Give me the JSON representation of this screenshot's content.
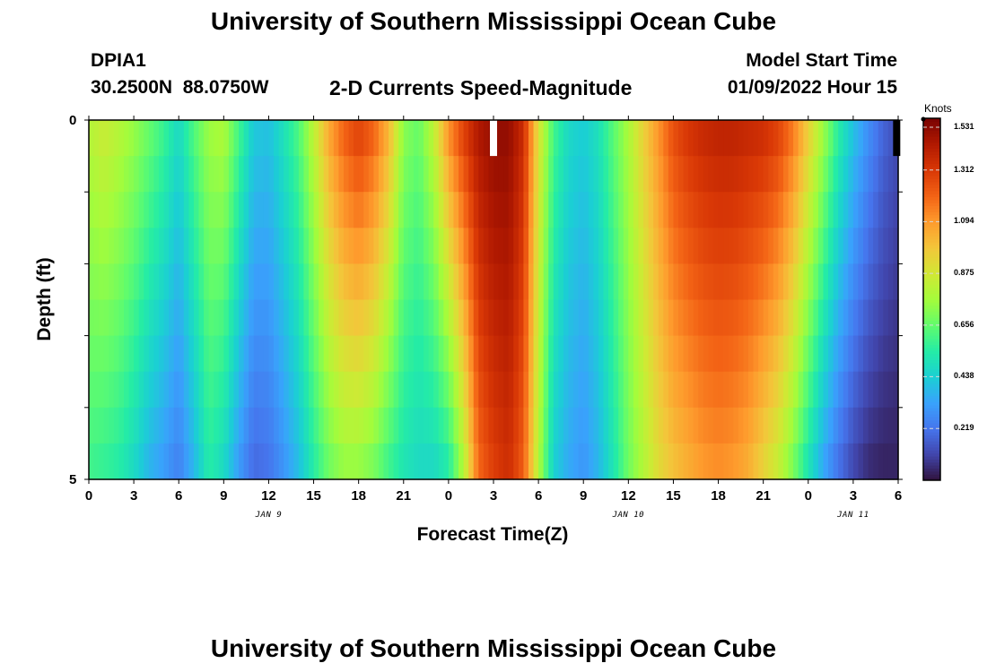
{
  "titles": {
    "top": "University of Southern Mississippi Ocean Cube",
    "bottom": "University of Southern Mississippi Ocean Cube"
  },
  "header": {
    "station": "DPIA1",
    "coords": "30.2500N  88.0750W",
    "subtitle": "2-D Currents Speed-Magnitude",
    "model_label": "Model Start Time",
    "model_time": "01/09/2022 Hour 15"
  },
  "colors": {
    "colormap": [
      "#30123b",
      "#4145ab",
      "#4675ed",
      "#39a2fc",
      "#1bcfd4",
      "#24eca6",
      "#61fc6c",
      "#a4fc3b",
      "#d1e834",
      "#f3c63a",
      "#fe9b2d",
      "#f36315",
      "#d93806",
      "#b11901",
      "#7a0402"
    ],
    "missing": "#ffffff",
    "frame": "#000000"
  },
  "chart_data": {
    "type": "heatmap",
    "title": "2-D Currents Speed-Magnitude",
    "xlabel": "Forecast Time(Z)",
    "ylabel": "Depth (ft)",
    "ylim": [
      0,
      5
    ],
    "xlim_hours": [
      0,
      54
    ],
    "x_tick_labels": [
      "0",
      "3",
      "6",
      "9",
      "12",
      "15",
      "18",
      "21",
      "0",
      "3",
      "6",
      "9",
      "12",
      "15",
      "18",
      "21",
      "0",
      "3",
      "6"
    ],
    "y_tick_labels": [
      "0",
      "5"
    ],
    "date_labels": [
      {
        "label": "JAN 9",
        "hour": 12
      },
      {
        "label": "JAN 10",
        "hour": 36
      },
      {
        "label": "JAN 11",
        "hour": 51
      }
    ],
    "depth_layers_ft": [
      0.25,
      0.75,
      1.25,
      1.75,
      2.25,
      2.75,
      3.25,
      3.75,
      4.25,
      4.75
    ],
    "time_knots_hours": [
      0,
      1,
      2,
      3,
      4,
      5,
      6,
      7,
      8,
      9,
      10,
      11,
      12,
      13,
      14,
      15,
      16,
      17,
      18,
      19,
      20,
      21,
      22,
      23,
      24,
      25,
      26,
      27,
      28,
      29,
      30,
      31,
      32,
      33,
      34,
      35,
      36,
      37,
      38,
      39,
      40,
      41,
      42,
      43,
      44,
      45,
      46,
      47,
      48,
      49,
      50,
      51,
      52,
      53,
      54
    ],
    "speed_profiles_knots": {
      "surface": [
        0.8,
        0.85,
        0.8,
        0.74,
        0.66,
        0.58,
        0.47,
        0.62,
        0.75,
        0.78,
        0.6,
        0.42,
        0.4,
        0.5,
        0.62,
        0.82,
        1.05,
        1.2,
        1.28,
        1.2,
        1.02,
        0.72,
        0.66,
        0.82,
        1.1,
        1.28,
        1.42,
        1.48,
        1.48,
        1.35,
        0.9,
        0.6,
        0.47,
        0.43,
        0.5,
        0.64,
        0.78,
        0.95,
        1.1,
        1.25,
        1.32,
        1.36,
        1.38,
        1.38,
        1.36,
        1.34,
        1.28,
        1.15,
        0.95,
        0.75,
        0.55,
        0.4,
        0.28,
        0.18,
        0.12
      ],
      "bottom": [
        0.6,
        0.58,
        0.55,
        0.48,
        0.38,
        0.32,
        0.25,
        0.38,
        0.55,
        0.48,
        0.32,
        0.2,
        0.22,
        0.3,
        0.4,
        0.55,
        0.68,
        0.75,
        0.75,
        0.7,
        0.6,
        0.52,
        0.48,
        0.48,
        0.55,
        0.8,
        1.2,
        1.3,
        1.35,
        1.22,
        0.8,
        0.45,
        0.35,
        0.3,
        0.38,
        0.52,
        0.68,
        0.8,
        0.92,
        1.0,
        1.05,
        1.1,
        1.12,
        1.1,
        1.05,
        0.95,
        0.85,
        0.7,
        0.52,
        0.35,
        0.22,
        0.12,
        0.06,
        0.04,
        0.04
      ]
    },
    "missing_cells": [
      {
        "hour": 27.0,
        "depth_layer": 0,
        "note": "white (no data)"
      },
      {
        "hour": 53.9,
        "depth_layer": 0,
        "note": "black edge"
      }
    ],
    "colorbar": {
      "label": "Knots",
      "min": 0.0,
      "max": 1.531,
      "ticks": [
        "0.219",
        "0.438",
        "0.656",
        "0.875",
        "1.094",
        "1.312",
        "1.531"
      ]
    }
  }
}
